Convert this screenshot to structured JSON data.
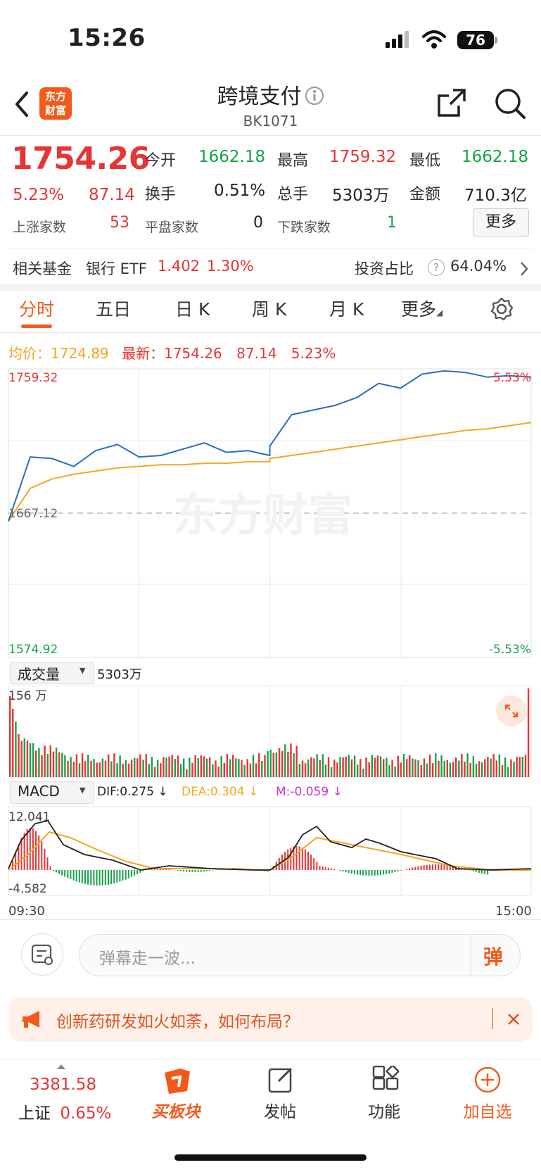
{
  "status_bar": {
    "time": "15:26",
    "battery": "76"
  },
  "header": {
    "title": "跨境支付",
    "code": "BK1071",
    "logo_line1": "东方",
    "logo_line2": "财富"
  },
  "quote": {
    "price": "1754.26",
    "change_pct": "5.23%",
    "change": "87.14",
    "open_label": "今开",
    "open": "1662.18",
    "high_label": "最高",
    "high": "1759.32",
    "low_label": "最低",
    "low": "1662.18",
    "turnover_label": "换手",
    "turnover": "0.51%",
    "volume_label": "总手",
    "volume": "5303万",
    "amount_label": "金额",
    "amount": "710.3亿",
    "up_label": "上涨家数",
    "up_count": "53",
    "flat_label": "平盘家数",
    "flat_count": "0",
    "down_label": "下跌家数",
    "down_count": "1",
    "more_label": "更多"
  },
  "fund": {
    "label": "相关基金",
    "name": "银行 ETF",
    "price": "1.402",
    "pct": "1.30%",
    "ratio_label": "投资占比",
    "ratio_help": "?",
    "ratio": "64.04%"
  },
  "tabs": [
    "分时",
    "五日",
    "日 K",
    "周 K",
    "月 K",
    "更多"
  ],
  "intraday": {
    "avg_label": "均价：",
    "avg": "1724.89",
    "latest_label": "最新：",
    "latest": "1754.26",
    "latest_change": "87.14",
    "latest_pct": "5.23%",
    "y_top": "1759.32",
    "y_mid": "1667.12",
    "y_bottom": "1574.92",
    "pct_top": "5.53%",
    "pct_bottom": "-5.53%",
    "watermark": "东方财富"
  },
  "volume_panel": {
    "selector": "成交量",
    "total": "5303万",
    "max_label": "156 万"
  },
  "macd_panel": {
    "selector": "MACD",
    "dif": "DIF:0.275 ↓",
    "dea": "DEA:0.304 ↓",
    "m": "M:-0.059 ↓",
    "y_top": "12.041",
    "y_bottom": "-4.582",
    "time_start": "09:30",
    "time_end": "15:00"
  },
  "danmu": {
    "placeholder": "弹幕走一波...",
    "button": "弹"
  },
  "notice": {
    "text": "创新药研发如火如荼，如何布局？"
  },
  "bottom_nav": {
    "index_value": "3381.58",
    "index_name": "上证",
    "index_pct": "0.65%",
    "items": [
      "买板块",
      "发帖",
      "功能",
      "加自选"
    ]
  },
  "colors": {
    "up": "#e63535",
    "down": "#16a34a",
    "accent": "#f25a1b",
    "price_line": "#2b6cc4",
    "avg_line": "#f5a623",
    "dea": "#f5a623",
    "m": "#cc33cc"
  },
  "chart_data": {
    "type": "line",
    "title": "",
    "x_range": [
      "09:30",
      "15:00"
    ],
    "ylim": [
      1574.92,
      1759.32
    ],
    "reference": 1667.12,
    "series": [
      {
        "name": "最新",
        "x": [
          "09:30",
          "09:40",
          "09:50",
          "10:00",
          "10:10",
          "10:20",
          "10:30",
          "10:40",
          "10:50",
          "11:00",
          "11:10",
          "11:20",
          "11:30",
          "13:00",
          "13:10",
          "13:20",
          "13:30",
          "13:40",
          "13:50",
          "14:00",
          "14:10",
          "14:20",
          "14:30",
          "14:40",
          "14:50",
          "15:00"
        ],
        "values": [
          1662,
          1703,
          1702,
          1697,
          1707,
          1711,
          1703,
          1704,
          1708,
          1712,
          1706,
          1707,
          1704,
          1710,
          1730,
          1733,
          1736,
          1741,
          1750,
          1747,
          1756,
          1758,
          1757,
          1754,
          1755,
          1754
        ]
      },
      {
        "name": "均价",
        "x": [
          "09:30",
          "09:40",
          "09:50",
          "10:00",
          "10:10",
          "10:20",
          "10:30",
          "10:40",
          "10:50",
          "11:00",
          "11:10",
          "11:20",
          "11:30",
          "13:00",
          "13:10",
          "13:20",
          "13:30",
          "13:40",
          "13:50",
          "14:00",
          "14:10",
          "14:20",
          "14:30",
          "14:40",
          "14:50",
          "15:00"
        ],
        "values": [
          1662,
          1683,
          1689,
          1692,
          1694,
          1696,
          1697,
          1698,
          1698,
          1699,
          1699,
          1700,
          1700,
          1702,
          1704,
          1706,
          1708,
          1710,
          1712,
          1714,
          1716,
          1718,
          1720,
          1721,
          1723,
          1725
        ]
      }
    ]
  }
}
